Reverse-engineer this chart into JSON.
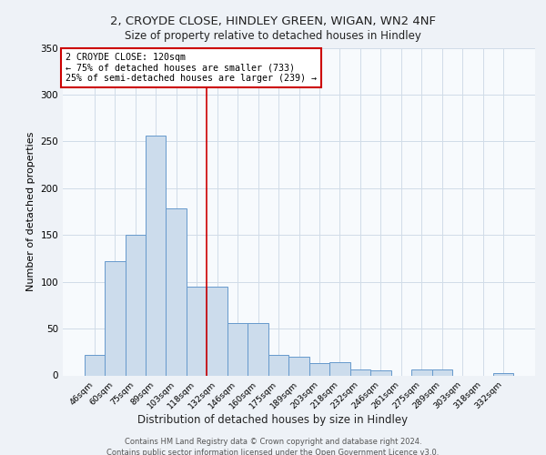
{
  "title1": "2, CROYDE CLOSE, HINDLEY GREEN, WIGAN, WN2 4NF",
  "title2": "Size of property relative to detached houses in Hindley",
  "xlabel": "Distribution of detached houses by size in Hindley",
  "ylabel": "Number of detached properties",
  "bar_labels": [
    "46sqm",
    "60sqm",
    "75sqm",
    "89sqm",
    "103sqm",
    "118sqm",
    "132sqm",
    "146sqm",
    "160sqm",
    "175sqm",
    "189sqm",
    "203sqm",
    "218sqm",
    "232sqm",
    "246sqm",
    "261sqm",
    "275sqm",
    "289sqm",
    "303sqm",
    "318sqm",
    "332sqm"
  ],
  "bar_values": [
    22,
    122,
    150,
    256,
    178,
    95,
    95,
    56,
    56,
    22,
    20,
    13,
    14,
    6,
    5,
    0,
    6,
    6,
    0,
    0,
    2
  ],
  "bar_color": "#ccdcec",
  "bar_edgecolor": "#6699cc",
  "vline_x": 5.5,
  "vline_color": "#cc0000",
  "annotation_text": "2 CROYDE CLOSE: 120sqm\n← 75% of detached houses are smaller (733)\n25% of semi-detached houses are larger (239) →",
  "annotation_box_color": "#ffffff",
  "annotation_box_edgecolor": "#cc0000",
  "ylim": [
    0,
    350
  ],
  "yticks": [
    0,
    50,
    100,
    150,
    200,
    250,
    300,
    350
  ],
  "footer1": "Contains HM Land Registry data © Crown copyright and database right 2024.",
  "footer2": "Contains public sector information licensed under the Open Government Licence v3.0.",
  "bg_color": "#eef2f7",
  "plot_bg_color": "#f7fafd",
  "grid_color": "#d0dce8"
}
